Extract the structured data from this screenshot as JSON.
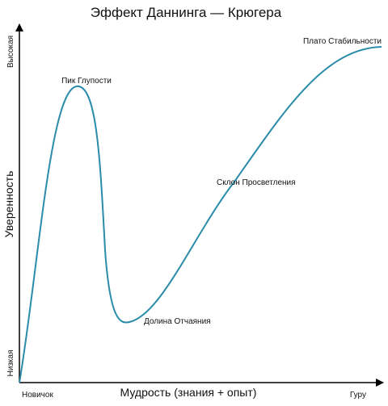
{
  "title": "Эффект Даннинга — Крюгера",
  "axes": {
    "x_label": "Мудрость (знания + опыт)",
    "y_label": "Уверенность",
    "x_start": "Новичок",
    "x_end": "Гуру",
    "y_low": "Низкая",
    "y_high": "Высокая"
  },
  "annotations": {
    "peak": "Пик Глупости",
    "valley": "Долина Отчаяния",
    "slope": "Склон Просветления",
    "plateau": "Плато Стабильности"
  },
  "colors": {
    "curve": "#2a8ca8",
    "axis": "#000000",
    "text": "#111111"
  }
}
